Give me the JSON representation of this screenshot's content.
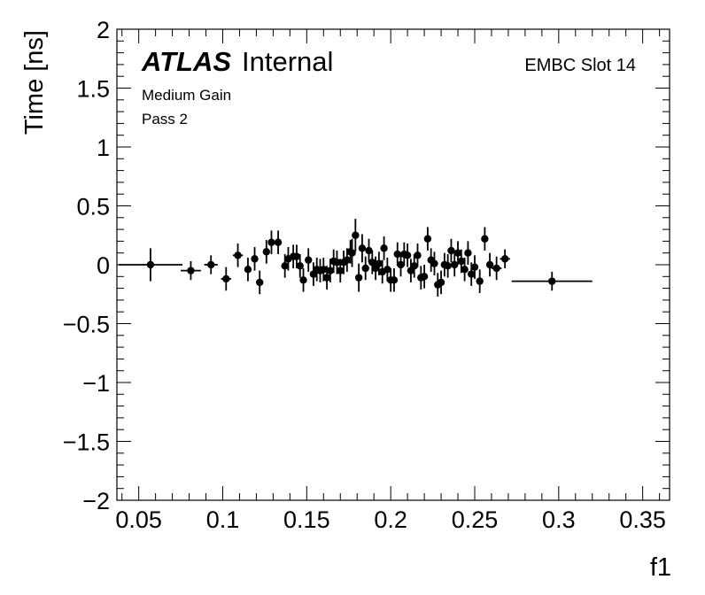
{
  "chart_data": {
    "type": "scatter",
    "xlabel": "f1",
    "ylabel": "Time [ns]",
    "xlim": [
      0.037,
      0.366
    ],
    "ylim": [
      -2,
      2
    ],
    "xticks": [
      "0.05",
      "0.1",
      "0.15",
      "0.2",
      "0.25",
      "0.3",
      "0.35"
    ],
    "yticks": [
      "−2",
      "−1.5",
      "−1",
      "−0.5",
      "0",
      "0.5",
      "1",
      "1.5",
      "2"
    ],
    "grid": false,
    "annotations": {
      "experiment": "ATLAS",
      "status": "Internal",
      "line1": "Medium Gain",
      "line2": "Pass 2",
      "slot": "EMBC Slot 14"
    },
    "points": [
      {
        "x": 0.057,
        "y": 0.0,
        "xerr": 0.019,
        "yerr": 0.14
      },
      {
        "x": 0.081,
        "y": -0.05,
        "xerr": 0.006,
        "yerr": 0.08
      },
      {
        "x": 0.093,
        "y": 0.0,
        "xerr": 0.004,
        "yerr": 0.08
      },
      {
        "x": 0.102,
        "y": -0.12,
        "xerr": 0.003,
        "yerr": 0.1
      },
      {
        "x": 0.109,
        "y": 0.08,
        "xerr": 0.003,
        "yerr": 0.1
      },
      {
        "x": 0.115,
        "y": -0.04,
        "xerr": 0.002,
        "yerr": 0.1
      },
      {
        "x": 0.119,
        "y": 0.05,
        "xerr": 0.002,
        "yerr": 0.1
      },
      {
        "x": 0.122,
        "y": -0.15,
        "xerr": 0.002,
        "yerr": 0.1
      },
      {
        "x": 0.126,
        "y": 0.11,
        "xerr": 0.002,
        "yerr": 0.1
      },
      {
        "x": 0.129,
        "y": 0.19,
        "xerr": 0.002,
        "yerr": 0.1
      },
      {
        "x": 0.133,
        "y": 0.19,
        "xerr": 0.002,
        "yerr": 0.1
      },
      {
        "x": 0.137,
        "y": -0.01,
        "xerr": 0.002,
        "yerr": 0.1
      },
      {
        "x": 0.139,
        "y": 0.05,
        "xerr": 0.002,
        "yerr": 0.1
      },
      {
        "x": 0.142,
        "y": 0.07,
        "xerr": 0.002,
        "yerr": 0.1
      },
      {
        "x": 0.144,
        "y": 0.07,
        "xerr": 0.002,
        "yerr": 0.1
      },
      {
        "x": 0.146,
        "y": -0.01,
        "xerr": 0.002,
        "yerr": 0.1
      },
      {
        "x": 0.148,
        "y": -0.13,
        "xerr": 0.002,
        "yerr": 0.1
      },
      {
        "x": 0.151,
        "y": 0.04,
        "xerr": 0.002,
        "yerr": 0.1
      },
      {
        "x": 0.154,
        "y": -0.08,
        "xerr": 0.002,
        "yerr": 0.1
      },
      {
        "x": 0.156,
        "y": -0.04,
        "xerr": 0.002,
        "yerr": 0.1
      },
      {
        "x": 0.158,
        "y": -0.05,
        "xerr": 0.002,
        "yerr": 0.1
      },
      {
        "x": 0.16,
        "y": -0.04,
        "xerr": 0.002,
        "yerr": 0.1
      },
      {
        "x": 0.162,
        "y": -0.11,
        "xerr": 0.002,
        "yerr": 0.1
      },
      {
        "x": 0.164,
        "y": -0.05,
        "xerr": 0.002,
        "yerr": 0.1
      },
      {
        "x": 0.166,
        "y": 0.03,
        "xerr": 0.002,
        "yerr": 0.1
      },
      {
        "x": 0.168,
        "y": 0.02,
        "xerr": 0.002,
        "yerr": 0.1
      },
      {
        "x": 0.17,
        "y": -0.05,
        "xerr": 0.002,
        "yerr": 0.1
      },
      {
        "x": 0.172,
        "y": 0.02,
        "xerr": 0.002,
        "yerr": 0.1
      },
      {
        "x": 0.174,
        "y": 0.04,
        "xerr": 0.002,
        "yerr": 0.1
      },
      {
        "x": 0.176,
        "y": 0.11,
        "xerr": 0.002,
        "yerr": 0.1
      },
      {
        "x": 0.177,
        "y": 0.1,
        "xerr": 0.002,
        "yerr": 0.12
      },
      {
        "x": 0.179,
        "y": 0.25,
        "xerr": 0.002,
        "yerr": 0.14
      },
      {
        "x": 0.181,
        "y": -0.11,
        "xerr": 0.002,
        "yerr": 0.12
      },
      {
        "x": 0.183,
        "y": 0.14,
        "xerr": 0.002,
        "yerr": 0.12
      },
      {
        "x": 0.185,
        "y": -0.03,
        "xerr": 0.002,
        "yerr": 0.1
      },
      {
        "x": 0.187,
        "y": 0.12,
        "xerr": 0.002,
        "yerr": 0.1
      },
      {
        "x": 0.189,
        "y": 0.02,
        "xerr": 0.002,
        "yerr": 0.1
      },
      {
        "x": 0.191,
        "y": -0.03,
        "xerr": 0.002,
        "yerr": 0.1
      },
      {
        "x": 0.193,
        "y": 0.01,
        "xerr": 0.002,
        "yerr": 0.1
      },
      {
        "x": 0.195,
        "y": -0.06,
        "xerr": 0.002,
        "yerr": 0.1
      },
      {
        "x": 0.196,
        "y": 0.14,
        "xerr": 0.002,
        "yerr": 0.1
      },
      {
        "x": 0.198,
        "y": -0.04,
        "xerr": 0.002,
        "yerr": 0.1
      },
      {
        "x": 0.2,
        "y": -0.13,
        "xerr": 0.002,
        "yerr": 0.1
      },
      {
        "x": 0.202,
        "y": -0.13,
        "xerr": 0.002,
        "yerr": 0.1
      },
      {
        "x": 0.204,
        "y": 0.09,
        "xerr": 0.002,
        "yerr": 0.1
      },
      {
        "x": 0.206,
        "y": 0.0,
        "xerr": 0.002,
        "yerr": 0.1
      },
      {
        "x": 0.208,
        "y": 0.09,
        "xerr": 0.002,
        "yerr": 0.1
      },
      {
        "x": 0.21,
        "y": 0.08,
        "xerr": 0.002,
        "yerr": 0.1
      },
      {
        "x": 0.212,
        "y": -0.05,
        "xerr": 0.002,
        "yerr": 0.1
      },
      {
        "x": 0.214,
        "y": -0.01,
        "xerr": 0.002,
        "yerr": 0.1
      },
      {
        "x": 0.216,
        "y": 0.08,
        "xerr": 0.002,
        "yerr": 0.1
      },
      {
        "x": 0.218,
        "y": -0.11,
        "xerr": 0.002,
        "yerr": 0.1
      },
      {
        "x": 0.22,
        "y": -0.1,
        "xerr": 0.002,
        "yerr": 0.1
      },
      {
        "x": 0.222,
        "y": 0.22,
        "xerr": 0.002,
        "yerr": 0.1
      },
      {
        "x": 0.224,
        "y": 0.04,
        "xerr": 0.002,
        "yerr": 0.1
      },
      {
        "x": 0.226,
        "y": 0.01,
        "xerr": 0.002,
        "yerr": 0.1
      },
      {
        "x": 0.228,
        "y": -0.17,
        "xerr": 0.002,
        "yerr": 0.1
      },
      {
        "x": 0.23,
        "y": -0.15,
        "xerr": 0.002,
        "yerr": 0.1
      },
      {
        "x": 0.232,
        "y": 0.0,
        "xerr": 0.002,
        "yerr": 0.1
      },
      {
        "x": 0.234,
        "y": -0.01,
        "xerr": 0.002,
        "yerr": 0.1
      },
      {
        "x": 0.236,
        "y": 0.12,
        "xerr": 0.002,
        "yerr": 0.1
      },
      {
        "x": 0.238,
        "y": 0.0,
        "xerr": 0.002,
        "yerr": 0.1
      },
      {
        "x": 0.24,
        "y": 0.1,
        "xerr": 0.002,
        "yerr": 0.1
      },
      {
        "x": 0.242,
        "y": 0.03,
        "xerr": 0.002,
        "yerr": 0.1
      },
      {
        "x": 0.244,
        "y": -0.04,
        "xerr": 0.002,
        "yerr": 0.1
      },
      {
        "x": 0.246,
        "y": 0.1,
        "xerr": 0.002,
        "yerr": 0.1
      },
      {
        "x": 0.248,
        "y": -0.08,
        "xerr": 0.002,
        "yerr": 0.1
      },
      {
        "x": 0.25,
        "y": -0.02,
        "xerr": 0.002,
        "yerr": 0.1
      },
      {
        "x": 0.253,
        "y": -0.14,
        "xerr": 0.002,
        "yerr": 0.1
      },
      {
        "x": 0.256,
        "y": 0.22,
        "xerr": 0.002,
        "yerr": 0.1
      },
      {
        "x": 0.259,
        "y": 0.0,
        "xerr": 0.002,
        "yerr": 0.1
      },
      {
        "x": 0.263,
        "y": -0.03,
        "xerr": 0.003,
        "yerr": 0.1
      },
      {
        "x": 0.268,
        "y": 0.05,
        "xerr": 0.003,
        "yerr": 0.08
      },
      {
        "x": 0.296,
        "y": -0.14,
        "xerr": 0.024,
        "yerr": 0.08
      }
    ]
  }
}
